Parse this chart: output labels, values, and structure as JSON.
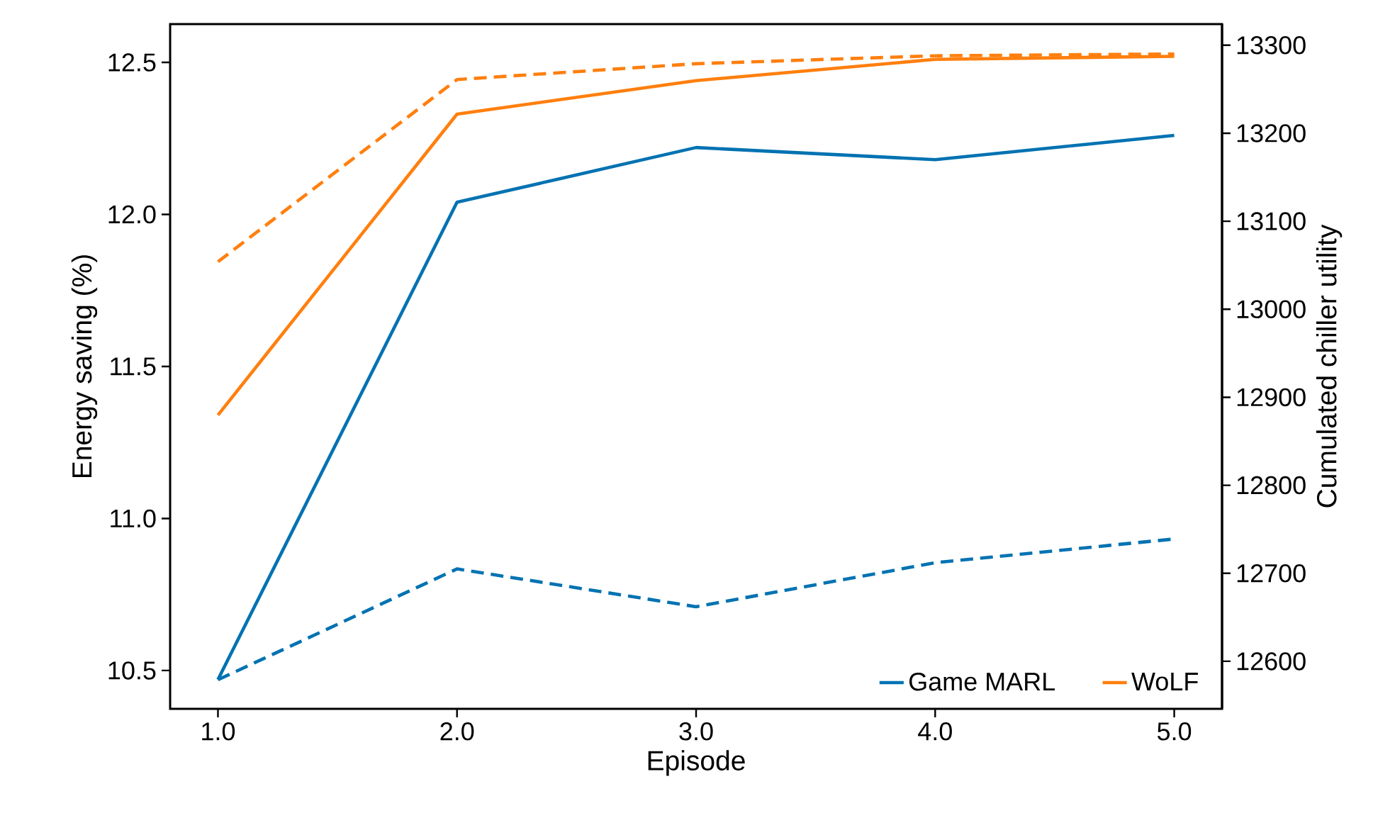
{
  "chart_data": {
    "type": "line",
    "x": [
      1,
      2,
      3,
      4,
      5
    ],
    "xlabel": "Episode",
    "ylabel": "Energy saving (%)",
    "y2label": "Cumulated chiller utility",
    "xlim": [
      0.8,
      5.2
    ],
    "xticks": [
      {
        "value": 1,
        "label": "1.0"
      },
      {
        "value": 2,
        "label": "2.0"
      },
      {
        "value": 3,
        "label": "3.0"
      },
      {
        "value": 4,
        "label": "4.0"
      },
      {
        "value": 5,
        "label": "5.0"
      }
    ],
    "ylim": [
      10.374,
      12.626
    ],
    "yticks": [
      10.5,
      {
        "value": 11,
        "label": "11.0"
      },
      11.5,
      {
        "value": 12,
        "label": "12.0"
      },
      12.5
    ],
    "y2lim": [
      12546,
      13324
    ],
    "y2ticks": [
      12600,
      12700,
      12800,
      12900,
      13000,
      13100,
      13200,
      13300
    ],
    "legend": "bottom right",
    "series": [
      {
        "name": "Game MARL",
        "color": "#0072b2",
        "values": [
          10.47,
          12.04,
          12.22,
          12.18,
          12.26
        ]
      },
      {
        "name": "WoLF",
        "color": "#ff7f0e",
        "values": [
          11.34,
          12.33,
          12.44,
          12.51,
          12.52
        ]
      },
      {
        "color": "#0072b2",
        "axis": "y2",
        "line_style": "dashed",
        "values": [
          12579,
          12705,
          12662,
          12712,
          12739
        ]
      },
      {
        "color": "#ff7f0e",
        "axis": "y2",
        "line_style": "dashed",
        "values": [
          13054,
          13261,
          13279,
          13288,
          13290
        ]
      }
    ]
  }
}
